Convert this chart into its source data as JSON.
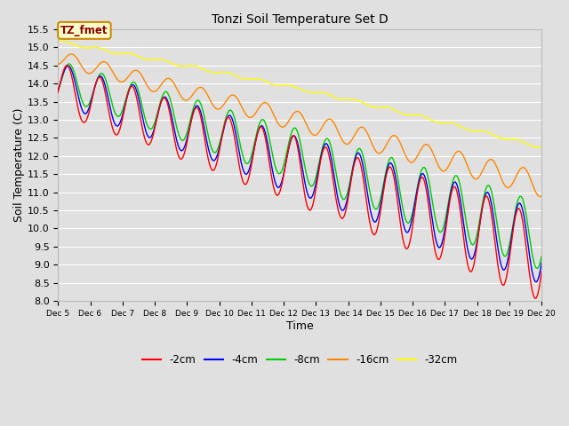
{
  "title": "Tonzi Soil Temperature Set D",
  "xlabel": "Time",
  "ylabel": "Soil Temperature (C)",
  "ylim": [
    8.0,
    15.5
  ],
  "xlim_days": [
    5,
    20
  ],
  "bg_color": "#e0e0e0",
  "plot_bg_color": "#e0e0e0",
  "grid_color": "white",
  "annotation_text": "TZ_fmet",
  "annotation_bg": "#ffffcc",
  "annotation_border": "#cc8800",
  "annotation_text_color": "#8b0000",
  "legend_items": [
    "-2cm",
    "-4cm",
    "-8cm",
    "-16cm",
    "-32cm"
  ],
  "line_colors": [
    "#ff0000",
    "#0000ff",
    "#00cc00",
    "#ff8800",
    "#ffff00"
  ],
  "yticks": [
    8.0,
    8.5,
    9.0,
    9.5,
    10.0,
    10.5,
    11.0,
    11.5,
    12.0,
    12.5,
    13.0,
    13.5,
    14.0,
    14.5,
    15.0,
    15.5
  ],
  "xtick_labels": [
    "Dec 5",
    "Dec 6",
    "Dec 7",
    "Dec 8",
    "Dec 9",
    "Dec 10",
    "Dec 11",
    "Dec 12",
    "Dec 13",
    "Dec 14",
    "Dec 15",
    "Dec 16",
    "Dec 17",
    "Dec 18",
    "Dec 19",
    "Dec 20"
  ],
  "xtick_positions": [
    5,
    6,
    7,
    8,
    9,
    10,
    11,
    12,
    13,
    14,
    15,
    16,
    17,
    18,
    19,
    20
  ],
  "figsize": [
    6.4,
    4.8
  ],
  "dpi": 100
}
